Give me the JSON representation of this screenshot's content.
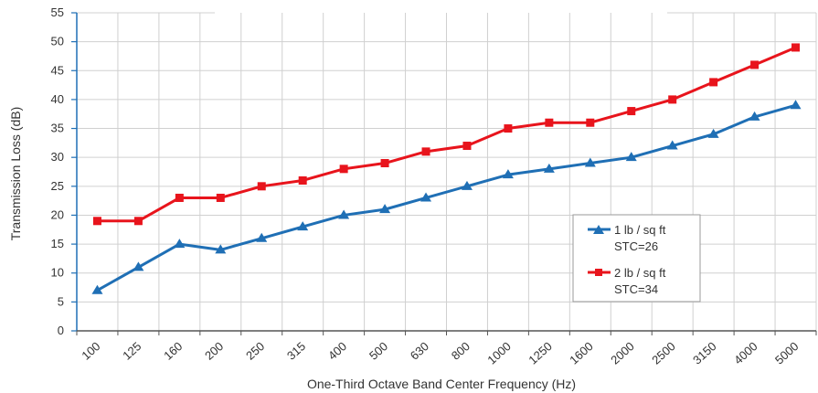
{
  "chart_data": {
    "type": "line",
    "title": "",
    "xlabel": "One-Third Octave Band Center Frequency (Hz)",
    "ylabel": "Transmission Loss (dB)",
    "categories": [
      "100",
      "125",
      "160",
      "200",
      "250",
      "315",
      "400",
      "500",
      "630",
      "800",
      "1000",
      "1250",
      "1600",
      "2000",
      "2500",
      "3150",
      "4000",
      "5000"
    ],
    "ylim": [
      0,
      55
    ],
    "yticks": [
      0,
      5,
      10,
      15,
      20,
      25,
      30,
      35,
      40,
      45,
      50,
      55
    ],
    "grid": true,
    "legend_position": "right",
    "series": [
      {
        "name": "1 lb / sq ft",
        "stc_label": "STC=26",
        "color": "#1f6fb5",
        "marker": "triangle",
        "values": [
          7,
          11,
          15,
          14,
          16,
          18,
          20,
          21,
          23,
          25,
          27,
          28,
          29,
          30,
          32,
          34,
          37,
          39
        ]
      },
      {
        "name": "2 lb / sq ft",
        "stc_label": "STC=34",
        "color": "#e8141c",
        "marker": "square",
        "values": [
          19,
          19,
          23,
          23,
          25,
          26,
          28,
          29,
          31,
          32,
          35,
          36,
          36,
          38,
          40,
          43,
          46,
          49
        ]
      }
    ]
  }
}
